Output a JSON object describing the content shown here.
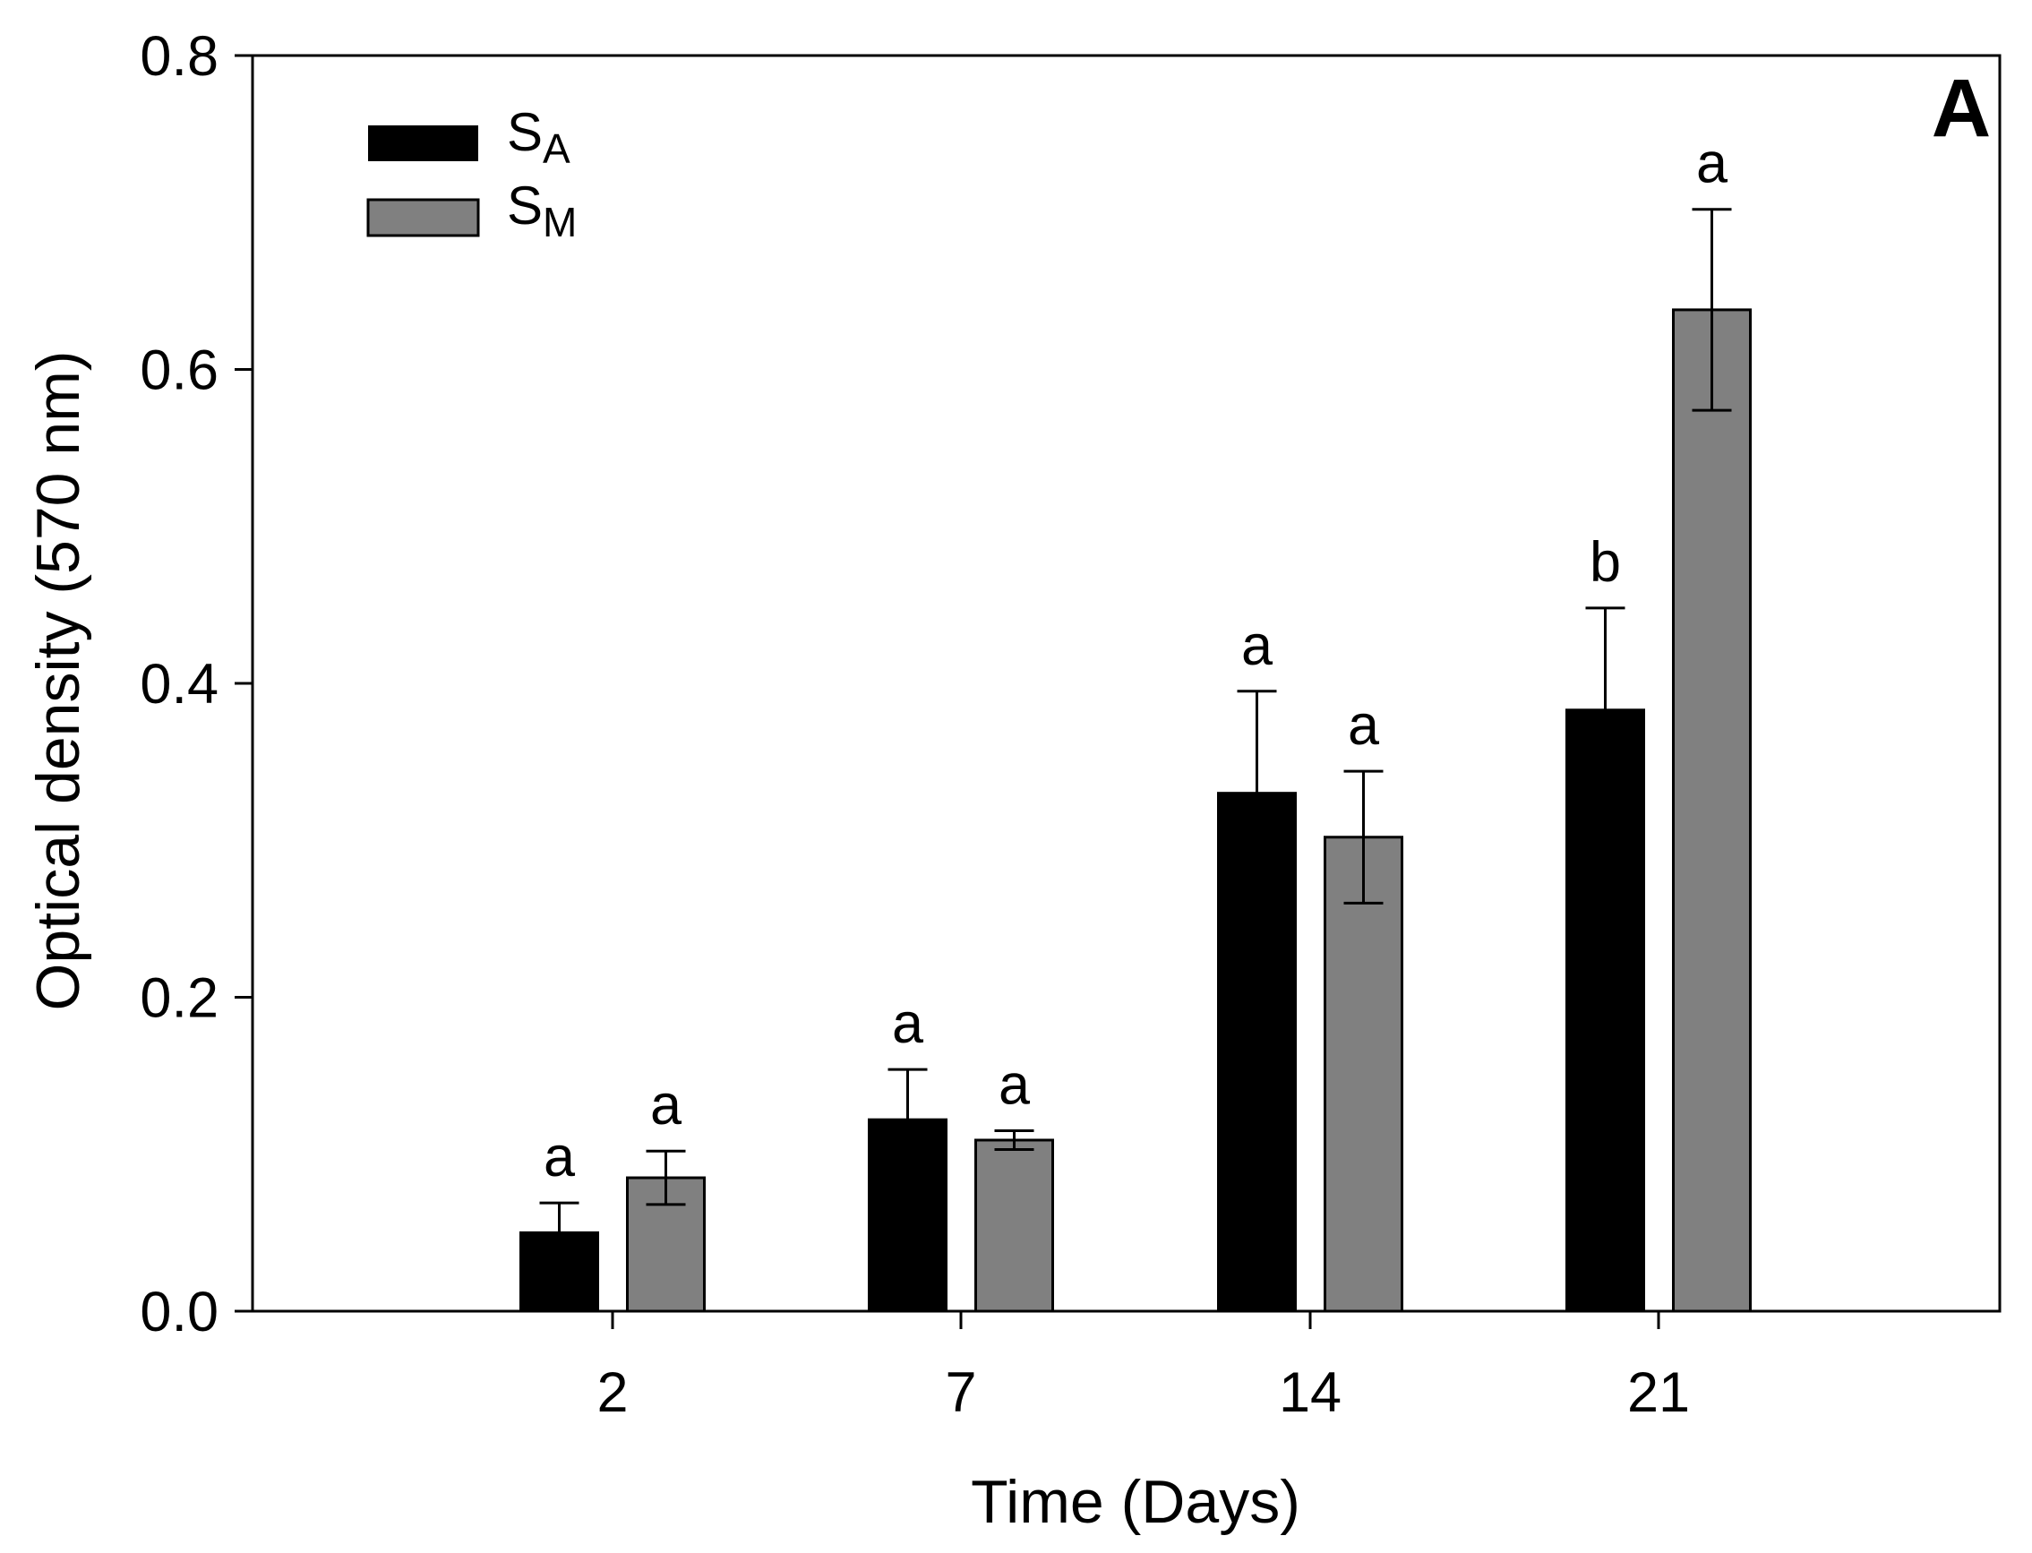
{
  "chart_data": {
    "type": "bar",
    "panel_label": "A",
    "xlabel": "Time (Days)",
    "ylabel": "Optical density (570 nm)",
    "ylim": [
      0,
      0.8
    ],
    "yticks": [
      "0.0",
      "0.2",
      "0.4",
      "0.6",
      "0.8"
    ],
    "categories": [
      "2",
      "7",
      "14",
      "21"
    ],
    "series": [
      {
        "name": "SA",
        "legend_main": "S",
        "legend_sub": "A",
        "color": "#000000",
        "values": [
          0.05,
          0.122,
          0.33,
          0.383
        ],
        "errors": [
          0.019,
          0.032,
          0.065,
          0.065
        ],
        "significance": [
          "a",
          "a",
          "a",
          "b"
        ]
      },
      {
        "name": "SM",
        "legend_main": "S",
        "legend_sub": "M",
        "color": "#808080",
        "values": [
          0.085,
          0.109,
          0.302,
          0.638
        ],
        "errors": [
          0.017,
          0.006,
          0.042,
          0.064
        ],
        "significance": [
          "a",
          "a",
          "a",
          "a"
        ]
      }
    ],
    "legend_position": "top-left"
  }
}
